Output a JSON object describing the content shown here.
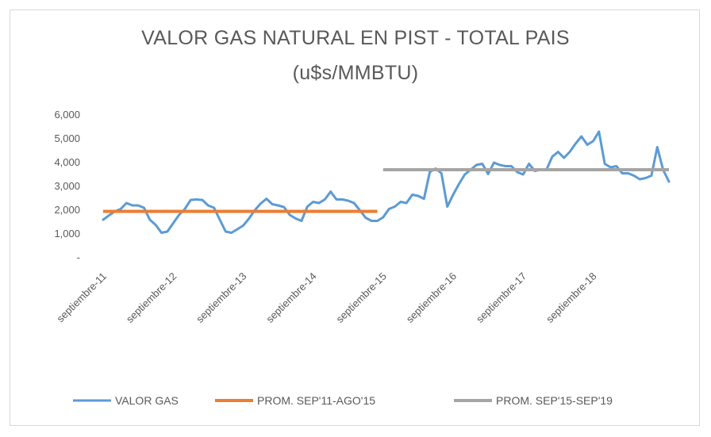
{
  "chart_data": {
    "type": "line",
    "title_line1": "VALOR GAS NATURAL EN PIST - TOTAL PAIS",
    "title_line2": "(u$s/MMBTU)",
    "ylim": [
      0,
      6000
    ],
    "y_ticks": [
      {
        "value": 0,
        "label": "-"
      },
      {
        "value": 1000,
        "label": "1,000"
      },
      {
        "value": 2000,
        "label": "2,000"
      },
      {
        "value": 3000,
        "label": "3,000"
      },
      {
        "value": 4000,
        "label": "4,000"
      },
      {
        "value": 5000,
        "label": "5,000"
      },
      {
        "value": 6000,
        "label": "6,000"
      }
    ],
    "x_tick_labels": [
      "septiembre-11",
      "septiembre-12",
      "septiembre-13",
      "septiembre-14",
      "septiembre-15",
      "septiembre-16",
      "septiembre-17",
      "septiembre-18"
    ],
    "x_tick_months": [
      0,
      12,
      24,
      36,
      48,
      60,
      72,
      84
    ],
    "x_range_months": [
      0,
      97
    ],
    "grid": false,
    "legend_position": "bottom",
    "series": [
      {
        "name": "VALOR GAS",
        "color": "#5B9BD5",
        "points": [
          [
            0,
            1600
          ],
          [
            1,
            1780
          ],
          [
            2,
            1950
          ],
          [
            3,
            2050
          ],
          [
            4,
            2300
          ],
          [
            5,
            2200
          ],
          [
            6,
            2200
          ],
          [
            7,
            2100
          ],
          [
            8,
            1600
          ],
          [
            9,
            1380
          ],
          [
            10,
            1050
          ],
          [
            11,
            1100
          ],
          [
            12,
            1450
          ],
          [
            13,
            1800
          ],
          [
            14,
            2050
          ],
          [
            15,
            2430
          ],
          [
            16,
            2450
          ],
          [
            17,
            2430
          ],
          [
            18,
            2200
          ],
          [
            19,
            2100
          ],
          [
            20,
            1600
          ],
          [
            21,
            1100
          ],
          [
            22,
            1050
          ],
          [
            23,
            1200
          ],
          [
            24,
            1350
          ],
          [
            25,
            1650
          ],
          [
            26,
            2000
          ],
          [
            27,
            2280
          ],
          [
            28,
            2480
          ],
          [
            29,
            2250
          ],
          [
            30,
            2200
          ],
          [
            31,
            2130
          ],
          [
            32,
            1800
          ],
          [
            33,
            1650
          ],
          [
            34,
            1550
          ],
          [
            35,
            2150
          ],
          [
            36,
            2350
          ],
          [
            37,
            2300
          ],
          [
            38,
            2450
          ],
          [
            39,
            2780
          ],
          [
            40,
            2450
          ],
          [
            41,
            2450
          ],
          [
            42,
            2400
          ],
          [
            43,
            2300
          ],
          [
            44,
            2000
          ],
          [
            45,
            1680
          ],
          [
            46,
            1550
          ],
          [
            47,
            1550
          ],
          [
            48,
            1700
          ],
          [
            49,
            2050
          ],
          [
            50,
            2150
          ],
          [
            51,
            2350
          ],
          [
            52,
            2300
          ],
          [
            53,
            2650
          ],
          [
            54,
            2600
          ],
          [
            55,
            2480
          ],
          [
            56,
            3600
          ],
          [
            57,
            3750
          ],
          [
            58,
            3550
          ],
          [
            59,
            2150
          ],
          [
            60,
            2650
          ],
          [
            61,
            3100
          ],
          [
            62,
            3500
          ],
          [
            63,
            3700
          ],
          [
            64,
            3900
          ],
          [
            65,
            3950
          ],
          [
            66,
            3520
          ],
          [
            67,
            4000
          ],
          [
            68,
            3900
          ],
          [
            69,
            3850
          ],
          [
            70,
            3850
          ],
          [
            71,
            3600
          ],
          [
            72,
            3500
          ],
          [
            73,
            3950
          ],
          [
            74,
            3650
          ],
          [
            75,
            3700
          ],
          [
            76,
            3700
          ],
          [
            77,
            4250
          ],
          [
            78,
            4450
          ],
          [
            79,
            4200
          ],
          [
            80,
            4450
          ],
          [
            81,
            4800
          ],
          [
            82,
            5100
          ],
          [
            83,
            4750
          ],
          [
            84,
            4900
          ],
          [
            85,
            5300
          ],
          [
            86,
            3950
          ],
          [
            87,
            3800
          ],
          [
            88,
            3850
          ],
          [
            89,
            3550
          ],
          [
            90,
            3550
          ],
          [
            91,
            3450
          ],
          [
            92,
            3300
          ],
          [
            93,
            3350
          ],
          [
            94,
            3450
          ],
          [
            95,
            4650
          ],
          [
            96,
            3700
          ],
          [
            97,
            3200
          ]
        ]
      },
      {
        "name": "PROM. SEP'11-AGO'15",
        "color": "#ED7D31",
        "points": [
          [
            0,
            1950
          ],
          [
            47,
            1950
          ]
        ]
      },
      {
        "name": "PROM. SEP'15-SEP'19",
        "color": "#A5A5A5",
        "points": [
          [
            48,
            3700
          ],
          [
            97,
            3700
          ]
        ]
      }
    ]
  }
}
